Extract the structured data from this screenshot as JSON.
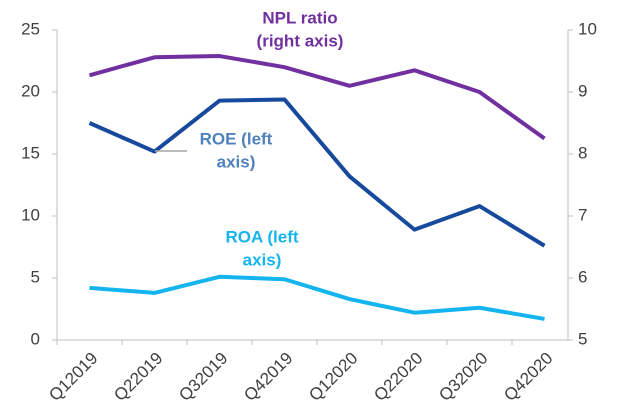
{
  "chart_data": {
    "type": "line",
    "categories": [
      "Q12019",
      "Q22019",
      "Q32019",
      "Q42019",
      "Q12020",
      "Q22020",
      "Q32020",
      "Q42020"
    ],
    "series": [
      {
        "name": "ROE (left axis)",
        "color": "#174a9c",
        "values": [
          17.5,
          15.2,
          19.3,
          19.4,
          13.2,
          8.9,
          10.8,
          7.6
        ]
      },
      {
        "name": "ROA (left axis)",
        "color": "#14b4ef",
        "values": [
          4.2,
          3.8,
          5.1,
          4.9,
          3.3,
          2.2,
          2.6,
          1.7
        ]
      },
      {
        "name": "NPL ratio (right axis)",
        "color": "#7030a0",
        "axis": "y2",
        "values": [
          9.27,
          9.56,
          9.58,
          9.4,
          9.1,
          9.35,
          9.0,
          8.25
        ]
      }
    ],
    "annotations": [
      {
        "lines": [
          "NPL ratio",
          "(right axis)"
        ],
        "color": "#7030a0"
      },
      {
        "lines": [
          "ROE (left",
          "axis)"
        ],
        "color": "#4f81bd"
      },
      {
        "lines": [
          "ROA (left",
          "axis)"
        ],
        "color": "#14b4ef"
      }
    ],
    "ylim": [
      0,
      25
    ],
    "yticks": [
      0,
      5,
      10,
      15,
      20,
      25
    ],
    "y2lim": [
      5,
      10
    ],
    "y2ticks": [
      5,
      6,
      7,
      8,
      9,
      10
    ],
    "grid": false
  }
}
